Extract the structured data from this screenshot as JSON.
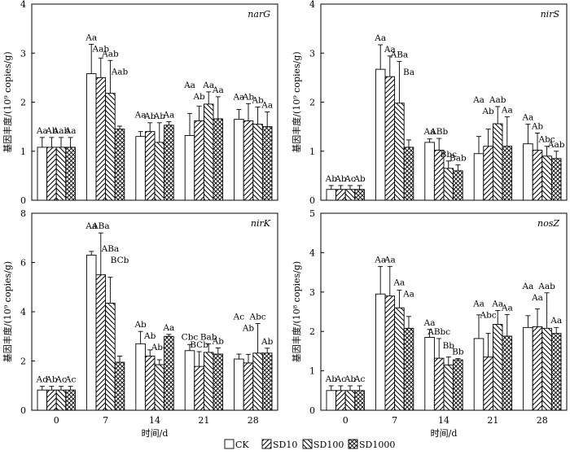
{
  "figure": {
    "xlabel": "时间/d",
    "categories": [
      "0",
      "7",
      "14",
      "21",
      "28"
    ],
    "treatments": [
      "CK",
      "SD10",
      "SD100",
      "SD1000"
    ],
    "legend_position": "bottom"
  },
  "chart_data": [
    {
      "type": "bar",
      "title": "narG",
      "ylabel": "基因丰度/(10⁹ copies/g)",
      "show_ylabel": true,
      "ylim": [
        0,
        4
      ],
      "yticks": [
        0,
        1,
        2,
        3,
        4
      ],
      "show_xaxis": false,
      "categories": [
        "0",
        "7",
        "14",
        "21",
        "28"
      ],
      "series": [
        {
          "name": "CK",
          "values": [
            1.08,
            2.58,
            1.3,
            1.32,
            1.65
          ],
          "errors": [
            0.2,
            0.6,
            0.1,
            0.45,
            0.2
          ],
          "labels": [
            "Aa",
            "Aa",
            "Aa",
            "Aa",
            "Aa"
          ]
        },
        {
          "name": "SD10",
          "values": [
            1.08,
            2.5,
            1.4,
            1.62,
            1.62
          ],
          "errors": [
            0.2,
            0.4,
            0.18,
            0.3,
            0.35
          ],
          "labels": [
            "Ab",
            "Aab",
            "Ab",
            "Ab",
            "Ab"
          ]
        },
        {
          "name": "SD100",
          "values": [
            1.08,
            2.18,
            1.18,
            1.96,
            1.55
          ],
          "errors": [
            0.2,
            0.67,
            0.4,
            0.25,
            0.35
          ],
          "labels": [
            "Aab",
            "Aab",
            "Ab",
            "Aa",
            "Ab"
          ]
        },
        {
          "name": "SD1000",
          "values": [
            1.08,
            1.45,
            1.53,
            1.66,
            1.5
          ],
          "errors": [
            0.2,
            0.06,
            0.07,
            0.45,
            0.3
          ],
          "labels": [
            "Aa",
            "Aab",
            "Aa",
            "Aa",
            "Aa"
          ]
        }
      ]
    },
    {
      "type": "bar",
      "title": "nirS",
      "ylabel": "基因丰度/(10⁹ copies/g)",
      "show_ylabel": true,
      "ylim": [
        0,
        4
      ],
      "yticks": [
        0,
        1,
        2,
        3,
        4
      ],
      "show_xaxis": false,
      "categories": [
        "0",
        "7",
        "14",
        "21",
        "28"
      ],
      "series": [
        {
          "name": "CK",
          "values": [
            0.22,
            2.67,
            1.18,
            0.95,
            1.15
          ],
          "errors": [
            0.08,
            0.5,
            0.07,
            0.35,
            0.4
          ],
          "labels": [
            "Ab",
            "Aa",
            "Aa",
            "Aa",
            "Aa"
          ]
        },
        {
          "name": "SD10",
          "values": [
            0.22,
            2.52,
            1.02,
            1.1,
            1.02
          ],
          "errors": [
            0.08,
            0.42,
            0.24,
            0.35,
            0.35
          ],
          "labels": [
            "Ab",
            "Aa",
            "ABb",
            "Ab",
            "Ab"
          ]
        },
        {
          "name": "SD100",
          "values": [
            0.22,
            1.98,
            0.65,
            1.56,
            0.9
          ],
          "errors": [
            0.08,
            0.85,
            0.15,
            0.35,
            0.2
          ],
          "labels": [
            "Ac",
            "ABa",
            "Bbc",
            "Aab",
            "Abc"
          ]
        },
        {
          "name": "SD1000",
          "values": [
            0.22,
            1.08,
            0.6,
            1.1,
            0.85
          ],
          "errors": [
            0.08,
            0.15,
            0.12,
            0.6,
            0.15
          ],
          "labels": [
            "Ab",
            "Ba",
            "Bab",
            "Aa",
            "Aab"
          ]
        }
      ]
    },
    {
      "type": "bar",
      "title": "nirK",
      "ylabel": "基因丰度/(10⁹ copies/g)",
      "show_ylabel": true,
      "ylim": [
        0,
        8
      ],
      "yticks": [
        0,
        2,
        4,
        6,
        8
      ],
      "show_xaxis": true,
      "categories": [
        "0",
        "7",
        "14",
        "21",
        "28"
      ],
      "series": [
        {
          "name": "CK",
          "values": [
            0.82,
            6.3,
            2.7,
            2.42,
            2.08
          ],
          "errors": [
            0.15,
            0.15,
            0.5,
            0.25,
            0.2
          ],
          "labels": [
            "Ad",
            "Aa",
            "Ab",
            "Cbc",
            "Ac"
          ]
        },
        {
          "name": "SD10",
          "values": [
            0.82,
            5.5,
            2.2,
            1.78,
            1.92
          ],
          "errors": [
            0.15,
            1.7,
            0.25,
            0.6,
            0.35
          ],
          "labels": [
            "Ab",
            "ABa",
            "Ab",
            "BCb",
            "Ab"
          ]
        },
        {
          "name": "SD100",
          "values": [
            0.82,
            4.35,
            1.85,
            2.35,
            2.32
          ],
          "errors": [
            0.15,
            1.05,
            0.2,
            0.35,
            1.2
          ],
          "labels": [
            "Ac",
            "ABa",
            "Abc",
            "Bab",
            "Abc"
          ]
        },
        {
          "name": "SD1000",
          "values": [
            0.82,
            1.95,
            3.0,
            2.28,
            2.32
          ],
          "errors": [
            0.15,
            0.25,
            0.08,
            0.25,
            0.2
          ],
          "labels": [
            "Ac",
            "BCb",
            "Aa",
            "Ab",
            "Ab"
          ]
        }
      ]
    },
    {
      "type": "bar",
      "title": "nosZ",
      "ylabel": "基因丰度/(10⁸ copies/g)",
      "show_ylabel": true,
      "ylim": [
        0,
        5
      ],
      "yticks": [
        0,
        1,
        2,
        3,
        4,
        5
      ],
      "show_xaxis": true,
      "categories": [
        "0",
        "7",
        "14",
        "21",
        "28"
      ],
      "series": [
        {
          "name": "CK",
          "values": [
            0.5,
            2.95,
            1.85,
            1.82,
            2.1
          ],
          "errors": [
            0.12,
            0.7,
            0.2,
            0.6,
            0.3
          ],
          "labels": [
            "Ab",
            "Aa",
            "Aa",
            "Aa",
            "Aa"
          ]
        },
        {
          "name": "SD10",
          "values": [
            0.5,
            2.9,
            1.32,
            1.35,
            2.12
          ],
          "errors": [
            0.12,
            0.75,
            0.5,
            0.6,
            0.45
          ],
          "labels": [
            "Ac",
            "Aa",
            "ABbc",
            "Abc",
            "Aa"
          ]
        },
        {
          "name": "SD100",
          "values": [
            0.5,
            2.6,
            1.15,
            2.18,
            2.08
          ],
          "errors": [
            0.12,
            0.45,
            0.2,
            0.35,
            0.9
          ],
          "labels": [
            "Ab",
            "Aa",
            "Bb",
            "Aa",
            "Aab"
          ]
        },
        {
          "name": "SD1000",
          "values": [
            0.5,
            2.08,
            1.28,
            1.88,
            1.95
          ],
          "errors": [
            0.12,
            0.3,
            0.03,
            0.55,
            0.15
          ],
          "labels": [
            "Ac",
            "Aa",
            "Bb",
            "Aa",
            "Aa"
          ]
        }
      ]
    }
  ]
}
